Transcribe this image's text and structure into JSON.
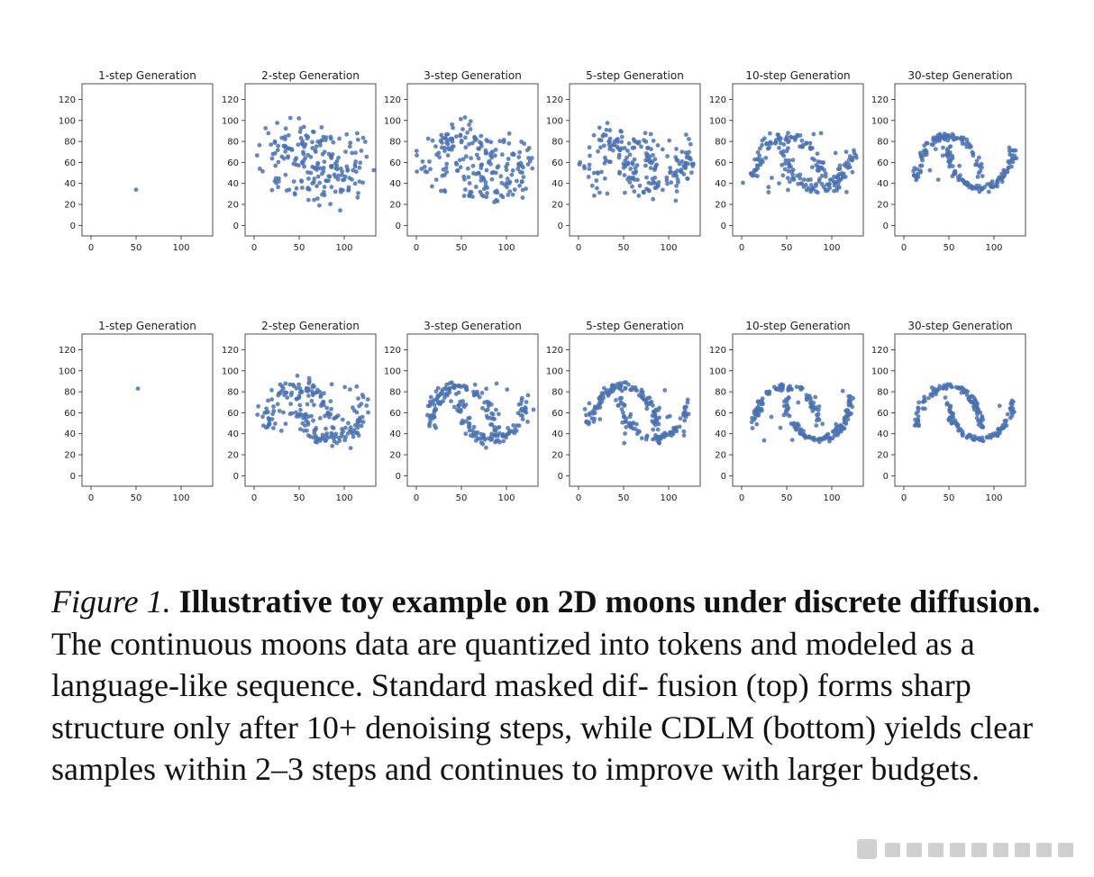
{
  "figure": {
    "chart_data": [
      {
        "type": "scatter",
        "row": "top",
        "title": "1-step Generation",
        "quality": 0,
        "xticks": [
          0,
          50,
          100
        ],
        "yticks": [
          0,
          20,
          40,
          60,
          80,
          100,
          120
        ],
        "xlim": [
          -10,
          135
        ],
        "ylim": [
          -10,
          135
        ],
        "point_color": "#4a72b0",
        "single_point": [
          50,
          34
        ]
      },
      {
        "type": "scatter",
        "row": "top",
        "title": "2-step Generation",
        "quality": 0.12,
        "xticks": [
          0,
          50,
          100
        ],
        "yticks": [
          0,
          20,
          40,
          60,
          80,
          100,
          120
        ],
        "xlim": [
          -10,
          135
        ],
        "ylim": [
          -10,
          135
        ],
        "point_color": "#4a72b0"
      },
      {
        "type": "scatter",
        "row": "top",
        "title": "3-step Generation",
        "quality": 0.3,
        "xticks": [
          0,
          50,
          100
        ],
        "yticks": [
          0,
          20,
          40,
          60,
          80,
          100,
          120
        ],
        "xlim": [
          -10,
          135
        ],
        "ylim": [
          -10,
          135
        ],
        "point_color": "#4a72b0"
      },
      {
        "type": "scatter",
        "row": "top",
        "title": "5-step Generation",
        "quality": 0.55,
        "xticks": [
          0,
          50,
          100
        ],
        "yticks": [
          0,
          20,
          40,
          60,
          80,
          100,
          120
        ],
        "xlim": [
          -10,
          135
        ],
        "ylim": [
          -10,
          135
        ],
        "point_color": "#4a72b0"
      },
      {
        "type": "scatter",
        "row": "top",
        "title": "10-step Generation",
        "quality": 0.8,
        "xticks": [
          0,
          50,
          100
        ],
        "yticks": [
          0,
          20,
          40,
          60,
          80,
          100,
          120
        ],
        "xlim": [
          -10,
          135
        ],
        "ylim": [
          -10,
          135
        ],
        "point_color": "#4a72b0"
      },
      {
        "type": "scatter",
        "row": "top",
        "title": "30-step Generation",
        "quality": 0.95,
        "xticks": [
          0,
          50,
          100
        ],
        "yticks": [
          0,
          20,
          40,
          60,
          80,
          100,
          120
        ],
        "xlim": [
          -10,
          135
        ],
        "ylim": [
          -10,
          135
        ],
        "point_color": "#4a72b0"
      },
      {
        "type": "scatter",
        "row": "bottom",
        "title": "1-step Generation",
        "quality": 0,
        "xticks": [
          0,
          50,
          100
        ],
        "yticks": [
          0,
          20,
          40,
          60,
          80,
          100,
          120
        ],
        "xlim": [
          -10,
          135
        ],
        "ylim": [
          -10,
          135
        ],
        "point_color": "#4a72b0",
        "single_point": [
          52,
          83
        ]
      },
      {
        "type": "scatter",
        "row": "bottom",
        "title": "2-step Generation",
        "quality": 0.7,
        "xticks": [
          0,
          50,
          100
        ],
        "yticks": [
          0,
          20,
          40,
          60,
          80,
          100,
          120
        ],
        "xlim": [
          -10,
          135
        ],
        "ylim": [
          -10,
          135
        ],
        "point_color": "#4a72b0"
      },
      {
        "type": "scatter",
        "row": "bottom",
        "title": "3-step Generation",
        "quality": 0.82,
        "xticks": [
          0,
          50,
          100
        ],
        "yticks": [
          0,
          20,
          40,
          60,
          80,
          100,
          120
        ],
        "xlim": [
          -10,
          135
        ],
        "ylim": [
          -10,
          135
        ],
        "point_color": "#4a72b0"
      },
      {
        "type": "scatter",
        "row": "bottom",
        "title": "5-step Generation",
        "quality": 0.88,
        "xticks": [
          0,
          50,
          100
        ],
        "yticks": [
          0,
          20,
          40,
          60,
          80,
          100,
          120
        ],
        "xlim": [
          -10,
          135
        ],
        "ylim": [
          -10,
          135
        ],
        "point_color": "#4a72b0"
      },
      {
        "type": "scatter",
        "row": "bottom",
        "title": "10-step Generation",
        "quality": 0.94,
        "xticks": [
          0,
          50,
          100
        ],
        "yticks": [
          0,
          20,
          40,
          60,
          80,
          100,
          120
        ],
        "xlim": [
          -10,
          135
        ],
        "ylim": [
          -10,
          135
        ],
        "point_color": "#4a72b0"
      },
      {
        "type": "scatter",
        "row": "bottom",
        "title": "30-step Generation",
        "quality": 0.98,
        "xticks": [
          0,
          50,
          100
        ],
        "yticks": [
          0,
          20,
          40,
          60,
          80,
          100,
          120
        ],
        "xlim": [
          -10,
          135
        ],
        "ylim": [
          -10,
          135
        ],
        "point_color": "#4a72b0"
      }
    ]
  },
  "caption": {
    "label": "Figure 1.",
    "title": "Illustrative toy example on 2D moons under discrete diffusion.",
    "body": "The continuous moons data are quantized into tokens and modeled as a language-like sequence. Standard masked dif- fusion (top) forms sharp structure only after 10+ denoising steps, while CDLM (bottom) yields clear samples within 2–3 steps and continues to improve with larger budgets."
  },
  "watermark": {
    "color": "#d0d0d0"
  }
}
